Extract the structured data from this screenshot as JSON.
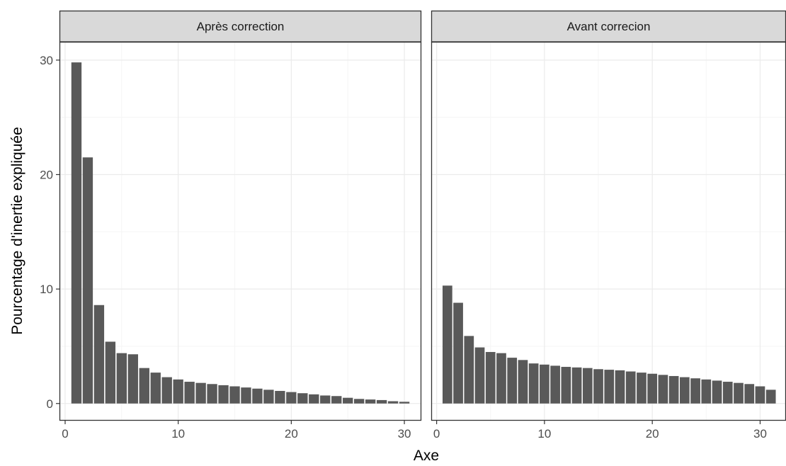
{
  "chart_data": {
    "type": "bar",
    "xlabel": "Axe",
    "ylabel": "Pourcentage d'inertie expliquée",
    "xticks": [
      0,
      10,
      20,
      30
    ],
    "yticks": [
      0,
      10,
      20,
      30
    ],
    "ylim": [
      -1.5,
      31.6
    ],
    "grid": true,
    "colors": {
      "bar": "#595959",
      "strip": "#d9d9d9",
      "grid_major": "#ebebeb",
      "grid_minor": "#f5f5f5",
      "border": "#333333"
    },
    "panels": [
      {
        "strip_label": "Après correction",
        "xlim": [
          -0.5,
          31.5
        ],
        "x": [
          1,
          2,
          3,
          4,
          5,
          6,
          7,
          8,
          9,
          10,
          11,
          12,
          13,
          14,
          15,
          16,
          17,
          18,
          19,
          20,
          21,
          22,
          23,
          24,
          25,
          26,
          27,
          28,
          29,
          30
        ],
        "values": [
          29.8,
          21.5,
          8.6,
          5.4,
          4.4,
          4.3,
          3.1,
          2.7,
          2.3,
          2.1,
          1.9,
          1.8,
          1.7,
          1.6,
          1.5,
          1.4,
          1.3,
          1.2,
          1.1,
          1.0,
          0.9,
          0.8,
          0.7,
          0.65,
          0.5,
          0.4,
          0.35,
          0.3,
          0.2,
          0.15
        ]
      },
      {
        "strip_label": "Avant correcion",
        "xlim": [
          -0.5,
          32.4
        ],
        "x": [
          1,
          2,
          3,
          4,
          5,
          6,
          7,
          8,
          9,
          10,
          11,
          12,
          13,
          14,
          15,
          16,
          17,
          18,
          19,
          20,
          21,
          22,
          23,
          24,
          25,
          26,
          27,
          28,
          29,
          30,
          31
        ],
        "values": [
          10.3,
          8.8,
          5.9,
          4.9,
          4.5,
          4.4,
          4.0,
          3.8,
          3.5,
          3.4,
          3.3,
          3.2,
          3.15,
          3.1,
          3.0,
          2.95,
          2.9,
          2.8,
          2.7,
          2.6,
          2.5,
          2.4,
          2.3,
          2.2,
          2.1,
          2.0,
          1.9,
          1.8,
          1.7,
          1.5,
          1.2
        ]
      }
    ]
  }
}
